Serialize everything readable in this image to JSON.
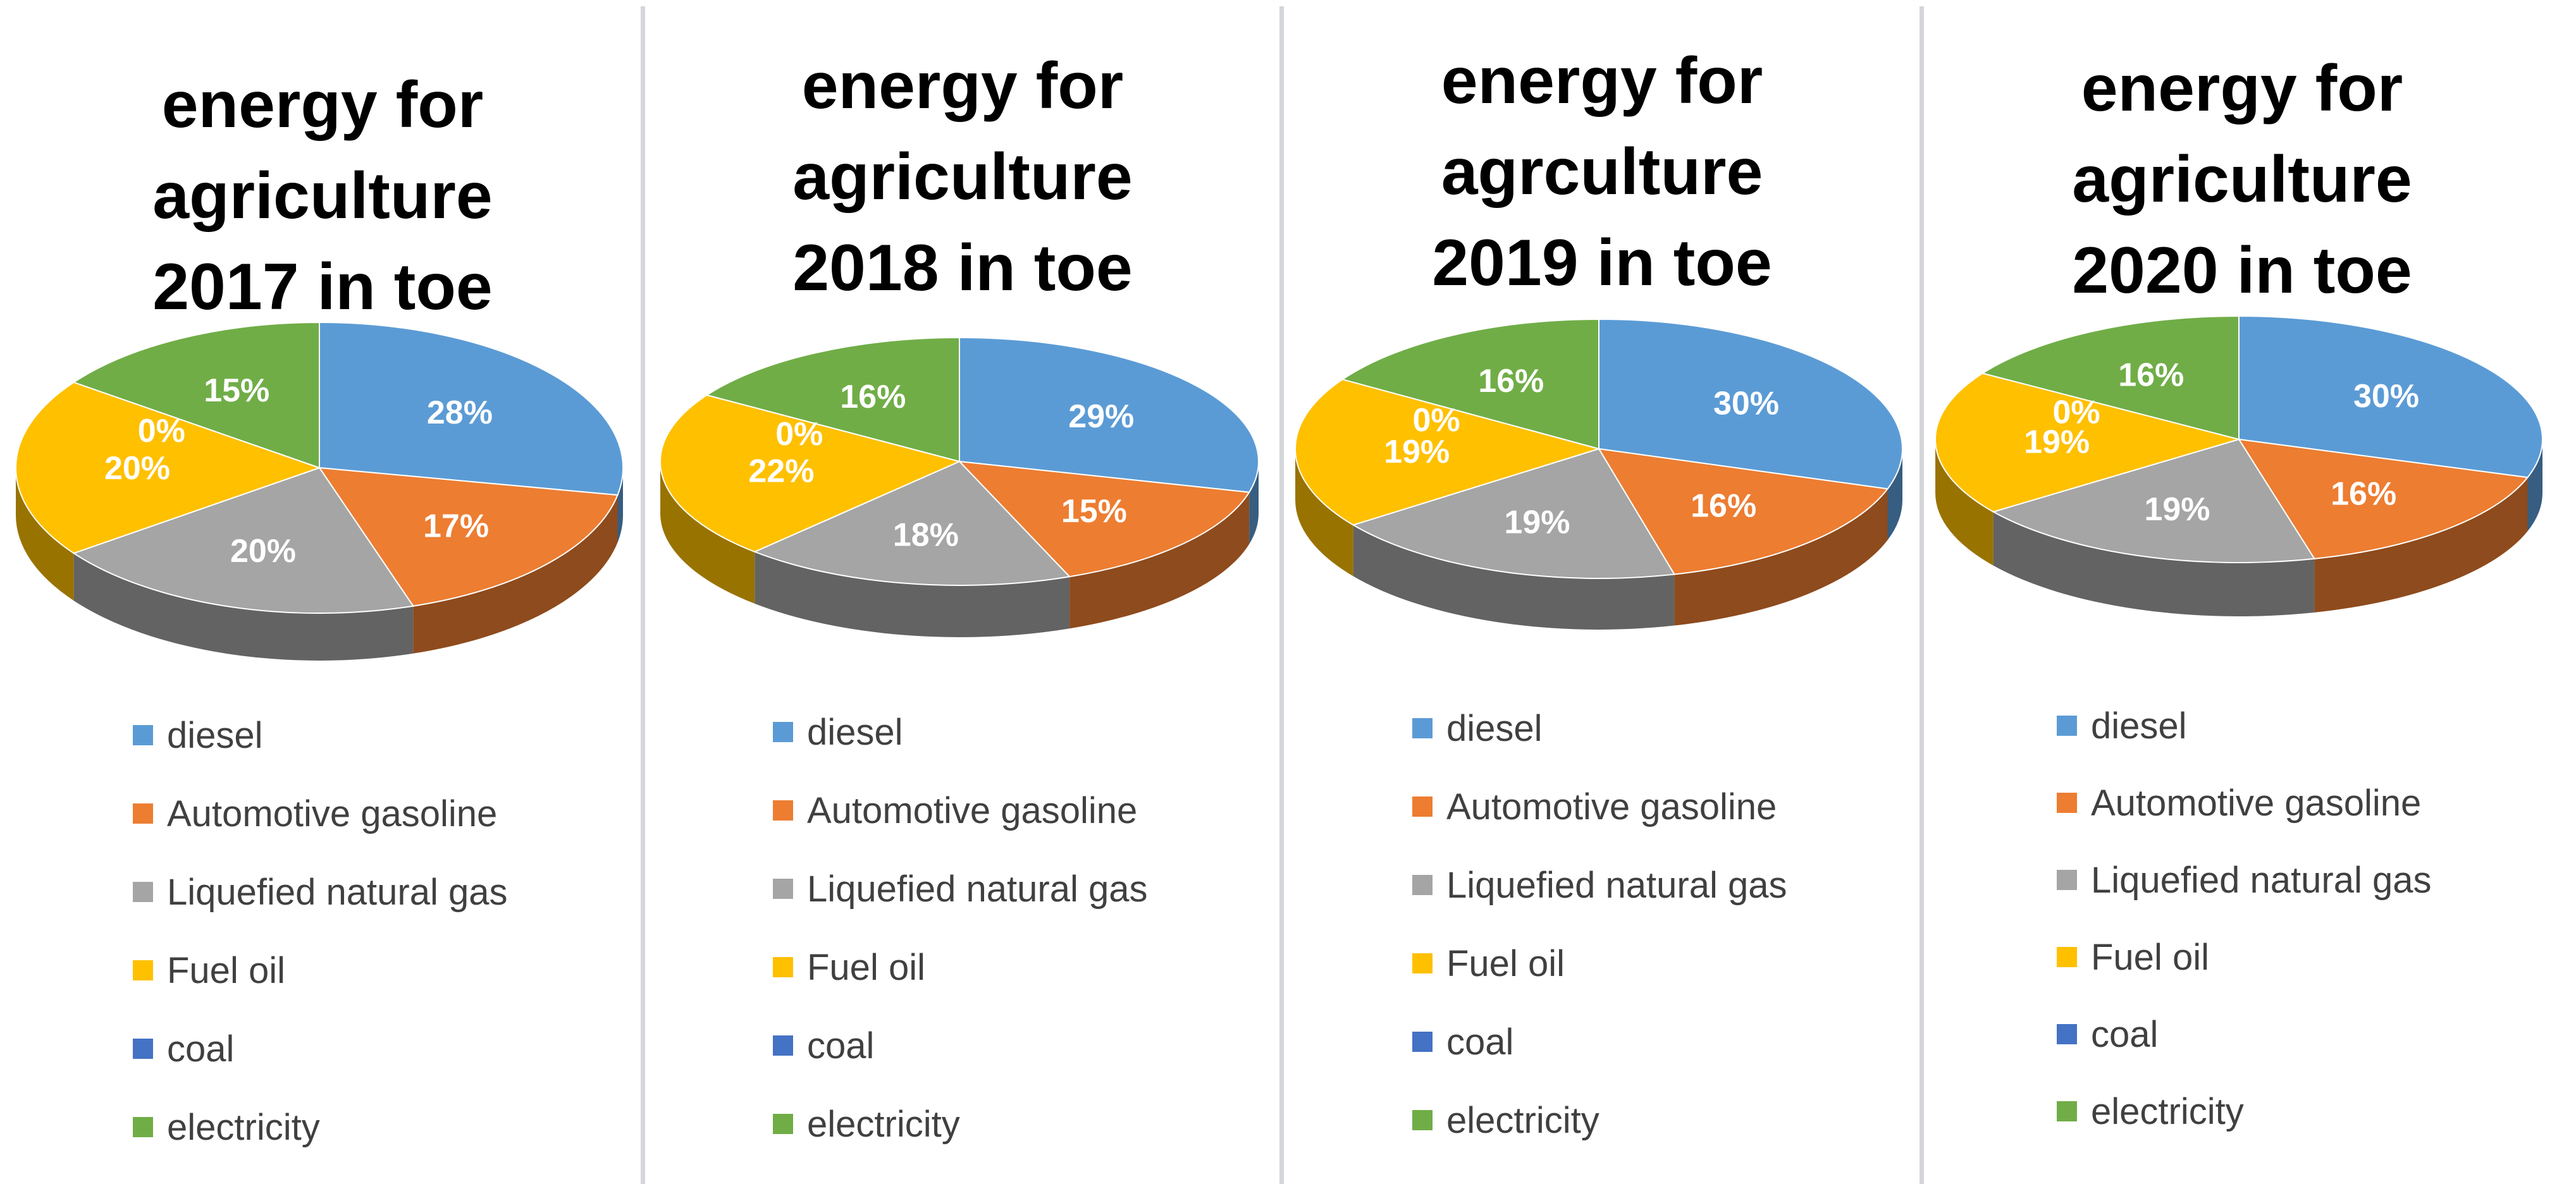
{
  "chart_data": [
    {
      "type": "pie",
      "title": "energy for\nagriculture\n2017 in toe",
      "categories": [
        "diesel",
        "Automotive gasoline",
        "Liquefied natural gas",
        "Fuel oil",
        "coal",
        "electricity"
      ],
      "values": [
        28,
        17,
        20,
        20,
        0,
        15
      ],
      "labels": [
        "28%",
        "17%",
        "20%",
        "20%",
        "0%",
        "15%"
      ],
      "unit": "%"
    },
    {
      "type": "pie",
      "title": "energy for\nagriculture\n2018 in toe",
      "categories": [
        "diesel",
        "Automotive gasoline",
        "Liquefied natural gas",
        "Fuel oil",
        "coal",
        "electricity"
      ],
      "values": [
        29,
        15,
        18,
        22,
        0,
        16
      ],
      "labels": [
        "29%",
        "15%",
        "18%",
        "22%",
        "0%",
        "16%"
      ],
      "unit": "%"
    },
    {
      "type": "pie",
      "title": "energy for\nagrculture\n2019 in toe",
      "categories": [
        "diesel",
        "Automotive gasoline",
        "Liquefied natural gas",
        "Fuel oil",
        "coal",
        "electricity"
      ],
      "values": [
        30,
        16,
        19,
        19,
        0,
        16
      ],
      "labels": [
        "30%",
        "16%",
        "19%",
        "19%",
        "0%",
        "16%"
      ],
      "unit": "%"
    },
    {
      "type": "pie",
      "title": "energy for\nagriculture\n2020 in toe",
      "categories": [
        "diesel",
        "Automotive gasoline",
        "Liquefied natural gas",
        "Fuel oil",
        "coal",
        "electricity"
      ],
      "values": [
        30,
        16,
        19,
        19,
        0,
        16
      ],
      "labels": [
        "30%",
        "16%",
        "19%",
        "19%",
        "0%",
        "16%"
      ],
      "unit": "%"
    }
  ],
  "colors": {
    "diesel": "#5b9bd5",
    "Automotive gasoline": "#ed7d31",
    "Liquefied natural gas": "#a5a5a5",
    "Fuel oil": "#ffc000",
    "coal": "#4472c4",
    "electricity": "#70ad47"
  },
  "legend_position": "bottom"
}
